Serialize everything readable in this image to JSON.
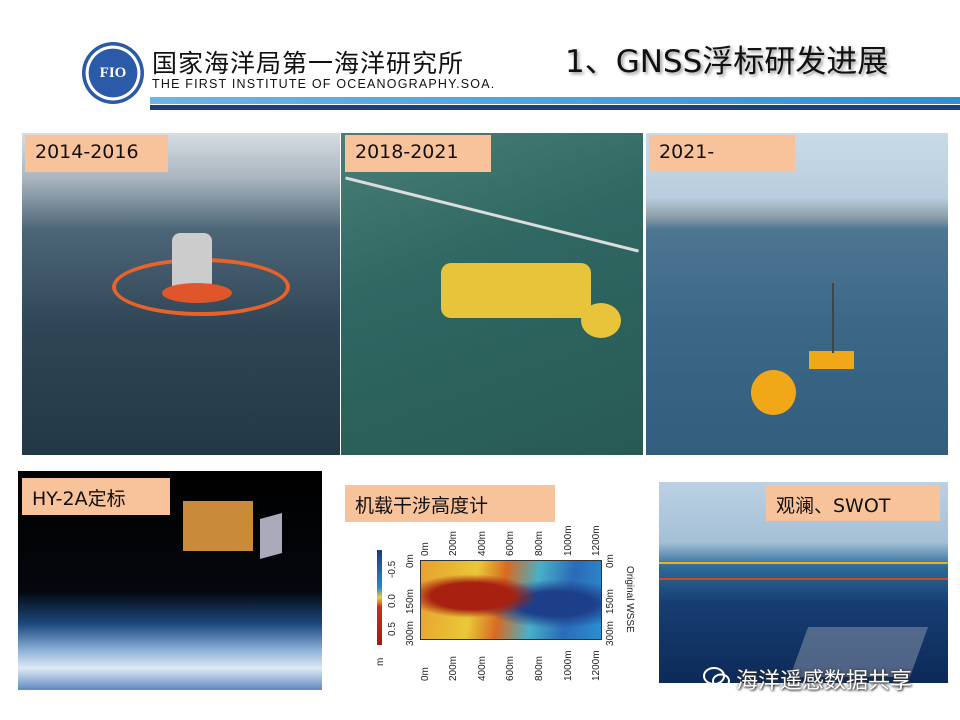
{
  "header": {
    "logo_text": "FIO",
    "org_cn": "国家海洋局第一海洋研究所",
    "org_en": "THE FIRST INSTITUTE OF OCEANOGRAPHY.SOA.",
    "slide_title": "1、GNSS浮标研发进展"
  },
  "panels": [
    {
      "label": "2014-2016"
    },
    {
      "label": "2018-2021"
    },
    {
      "label": "2021-"
    },
    {
      "label": "HY-2A定标"
    },
    {
      "label": "机载干涉高度计"
    },
    {
      "label": "观澜、SWOT"
    }
  ],
  "heatmap": {
    "x_ticks": [
      "0m",
      "200m",
      "400m",
      "600m",
      "800m",
      "1000m",
      "1200m"
    ],
    "y_ticks": [
      "0m",
      "150m",
      "300m"
    ],
    "colorbar_ticks": [
      "-0.5",
      "0.0",
      "0.5"
    ],
    "colorbar_unit": "m",
    "side_label": "Original WSSE"
  },
  "watermark": {
    "text": "海洋遥感数据共享",
    "icon": "wechat-icon"
  },
  "colors": {
    "label_bg": "#f8c39a",
    "header_line_dark": "#1d3f78",
    "header_line_light": "#4aa3e0"
  }
}
